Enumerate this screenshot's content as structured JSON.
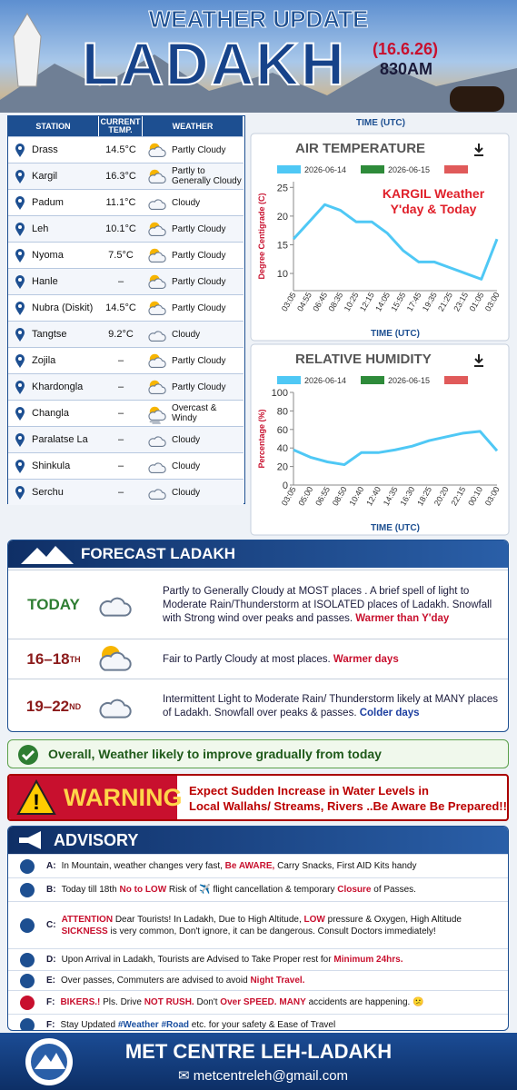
{
  "header": {
    "title": "WEATHER UPDATE",
    "place": "LADAKH",
    "date": "(16.6.26)",
    "time": "830AM"
  },
  "table": {
    "headers": [
      "STATION",
      "CURRENT TEMP.",
      "WEATHER"
    ],
    "rows": [
      [
        "Drass",
        "14.5°C",
        "Partly Cloudy"
      ],
      [
        "Kargil",
        "16.3°C",
        "Partly to Generally Cloudy"
      ],
      [
        "Padum",
        "11.1°C",
        "Cloudy"
      ],
      [
        "Leh",
        "10.1°C",
        "Partly Cloudy"
      ],
      [
        "Nyoma",
        "7.5°C",
        "Partly Cloudy"
      ],
      [
        "Hanle",
        "–",
        "Partly Cloudy"
      ],
      [
        "Nubra (Diskit)",
        "14.5°C",
        "Partly Cloudy"
      ],
      [
        "Tangtse",
        "9.2°C",
        "Cloudy"
      ],
      [
        "Zojila",
        "–",
        "Partly Cloudy"
      ],
      [
        "Khardongla",
        "–",
        "Partly Cloudy"
      ],
      [
        "Changla",
        "–",
        "Overcast & Windy"
      ],
      [
        "Paralatse La",
        "–",
        "Cloudy"
      ],
      [
        "Shinkula",
        "–",
        "Cloudy"
      ],
      [
        "Serchu",
        "–",
        "Cloudy"
      ]
    ]
  },
  "charts": [
    {
      "type": "line",
      "top_label": "TIME (UTC)",
      "title": "AIR TEMPERATURE",
      "xlabel": "TIME (UTC)",
      "ylabel": "Degree Centigrade (C)",
      "annotation": [
        "KARGIL Weather",
        "Y'day & Today"
      ],
      "legend": [
        {
          "name": "2026-06-14",
          "color": "#4fc8f5"
        },
        {
          "name": "2026-06-15",
          "color": "#2e8b3a"
        },
        {
          "color": "#e05a5a"
        }
      ],
      "categories": [
        "03:05",
        "04:55",
        "06:45",
        "08:35",
        "10:25",
        "12:15",
        "14:05",
        "15:55",
        "17:45",
        "19:35",
        "21:25",
        "23:15",
        "01:05",
        "03:00"
      ],
      "series": [
        {
          "name": "2026-06-14",
          "color": "#4fc8f5",
          "values": [
            16,
            19,
            22,
            21,
            19,
            19,
            17,
            14,
            12,
            12,
            11,
            10,
            9,
            16
          ]
        }
      ],
      "ylim": [
        7,
        26
      ],
      "yticks": [
        10,
        15,
        20,
        25
      ]
    },
    {
      "type": "line",
      "title": "RELATIVE HUMIDITY",
      "xlabel": "TIME (UTC)",
      "ylabel": "Percentage (%)",
      "legend": [
        {
          "name": "2026-06-14",
          "color": "#4fc8f5"
        },
        {
          "name": "2026-06-15",
          "color": "#2e8b3a"
        },
        {
          "color": "#e05a5a"
        }
      ],
      "categories": [
        "03:05",
        "05:00",
        "06:55",
        "08:50",
        "10:40",
        "12:40",
        "14:35",
        "16:30",
        "18:25",
        "20:20",
        "22:15",
        "00:10",
        "03:00"
      ],
      "series": [
        {
          "name": "2026-06-14",
          "color": "#4fc8f5",
          "values": [
            38,
            30,
            25,
            22,
            35,
            35,
            38,
            42,
            48,
            52,
            56,
            58,
            37
          ]
        }
      ],
      "ylim": [
        0,
        100
      ],
      "yticks": [
        0,
        20,
        40,
        60,
        80,
        100
      ]
    }
  ],
  "forecast": {
    "title": "FORECAST LADAKH",
    "rows": [
      {
        "period": "TODAY",
        "text": "Partly to Generally Cloudy at MOST places . A brief spell of light to Moderate Rain/Thunderstorm at ISOLATED places of Ladakh. Snowfall with Strong wind over peaks and passes.",
        "highlight": "Warmer than Y'day"
      },
      {
        "period": "16–18",
        "sup": "TH",
        "text": "Fair to Partly Cloudy at most places.",
        "highlight": "Warmer days"
      },
      {
        "period": "19–22",
        "sup": "ND",
        "text": "Intermittent Light to Moderate Rain/ Thunderstorm likely at MANY places of Ladakh. Snowfall over peaks & passes.",
        "highlight": "Colder days"
      }
    ]
  },
  "summary": "Overall, Weather likely to improve gradually from today",
  "warning": {
    "title": "WARNING",
    "lines": [
      "Expect Sudden Increase in Water Levels in",
      "Local Wallahs/ Streams, Rivers ..Be Aware Be Prepared!!"
    ]
  },
  "advisory": {
    "title": "ADVISORY",
    "items": [
      {
        "label": "A:",
        "parts": [
          {
            "text": "In Mountain, weather changes very fast, "
          },
          {
            "text": "Be AWARE,",
            "em": true
          },
          {
            "text": " Carry Snacks, First AID Kits handy"
          }
        ]
      },
      {
        "label": "B:",
        "parts": [
          {
            "text": "Today till 18th "
          },
          {
            "text": "No to LOW",
            "em": true
          },
          {
            "text": " Risk of ✈️ flight cancellation & temporary "
          },
          {
            "text": "Closure",
            "em": true
          },
          {
            "text": " of Passes."
          }
        ]
      },
      {
        "label": "C:",
        "parts": [
          {
            "text": "ATTENTION",
            "em": true
          },
          {
            "text": " Dear Tourists! In Ladakh, Due to High Altitude, "
          },
          {
            "text": "LOW",
            "em": true
          },
          {
            "text": " pressure & Oxygen, High Altitude "
          },
          {
            "text": "SICKNESS",
            "em": true
          },
          {
            "text": " is very common, Don't ignore, it can be dangerous. Consult Doctors immediately!"
          }
        ]
      },
      {
        "label": "D:",
        "parts": [
          {
            "text": "Upon Arrival in Ladakh,  Tourists are Advised to Take Proper rest for "
          },
          {
            "text": "Minimum 24hrs.",
            "em": true
          }
        ]
      },
      {
        "label": "E:",
        "parts": [
          {
            "text": "Over passes, Commuters are advised to avoid "
          },
          {
            "text": "Night Travel.",
            "em": true
          }
        ]
      },
      {
        "label": "F:",
        "parts": [
          {
            "text": "BIKERS.!",
            "em": true
          },
          {
            "text": " Pls. Drive "
          },
          {
            "text": "NOT RUSH.",
            "em": true
          },
          {
            "text": " Don't "
          },
          {
            "text": "Over SPEED.",
            "em": true
          },
          {
            "text": " "
          },
          {
            "text": "MANY",
            "em": true
          },
          {
            "text": " accidents are happening. 😕"
          }
        ]
      },
      {
        "label": "F:",
        "parts": [
          {
            "text": "Stay Updated "
          },
          {
            "text": "#Weather #Road",
            "em": true,
            "color": "#1a4fa0"
          },
          {
            "text": " etc. for your safety & Ease of Travel"
          }
        ]
      }
    ]
  },
  "footer": {
    "name": "MET CENTRE LEH-LADAKH",
    "email": "metcentreleh@gmail.com"
  }
}
